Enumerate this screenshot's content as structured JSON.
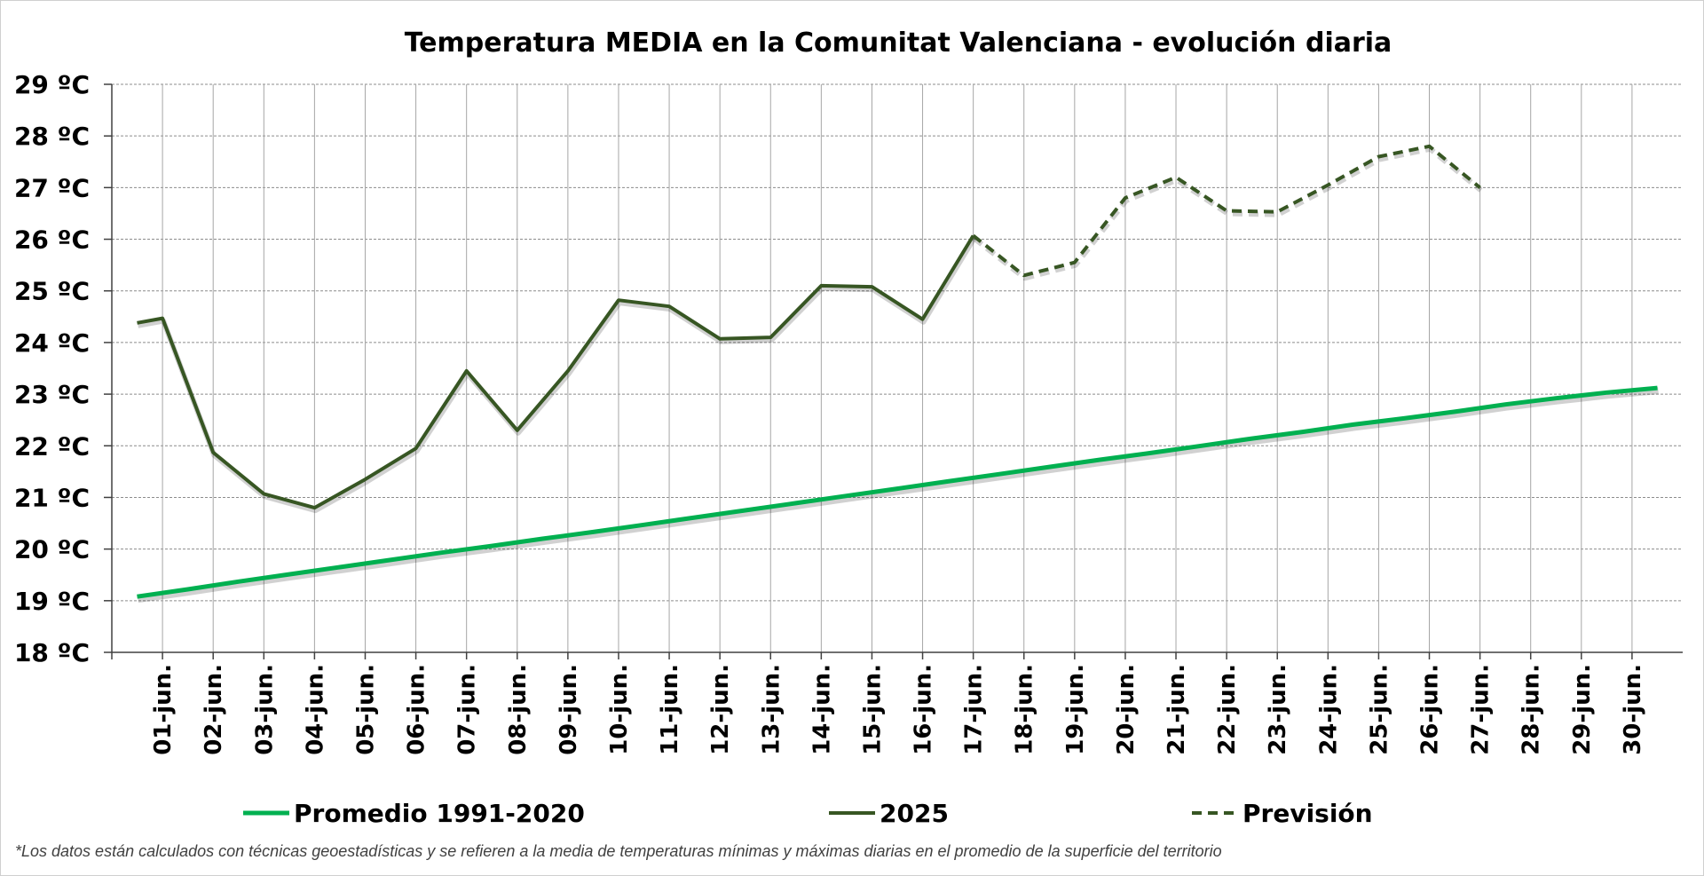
{
  "chart_data": {
    "type": "line",
    "title": "Temperatura MEDIA en la Comunitat Valenciana - evolución diaria",
    "ylim": [
      18,
      29
    ],
    "y_ticks": [
      "18 ºC",
      "19 ºC",
      "20 ºC",
      "21 ºC",
      "22 ºC",
      "23 ºC",
      "24 ºC",
      "25 ºC",
      "26 ºC",
      "27 ºC",
      "28 ºC",
      "29 ºC"
    ],
    "categories": [
      "01-jun.",
      "02-jun.",
      "03-jun.",
      "04-jun.",
      "05-jun.",
      "06-jun.",
      "07-jun.",
      "08-jun.",
      "09-jun.",
      "10-jun.",
      "11-jun.",
      "12-jun.",
      "13-jun.",
      "14-jun.",
      "15-jun.",
      "16-jun.",
      "17-jun.",
      "18-jun.",
      "19-jun.",
      "20-jun.",
      "21-jun.",
      "22-jun.",
      "23-jun.",
      "24-jun.",
      "25-jun.",
      "26-jun.",
      "27-jun.",
      "28-jun.",
      "29-jun.",
      "30-jun."
    ],
    "grid": true,
    "legend_position": "bottom",
    "series": [
      {
        "name": "Promedio 1991-2020",
        "color": "#00b050",
        "style": "solid",
        "x": [
          0.5,
          1.5,
          2.5,
          3.5,
          4.5,
          5.5,
          6.5,
          7.5,
          8.5,
          9.5,
          10.5,
          11.5,
          12.5,
          13.5,
          14.5,
          15.5,
          16.5,
          17.5,
          18.5,
          19.5,
          20.5,
          21.5,
          22.5,
          23.5,
          24.5,
          25.5,
          26.5,
          27.5,
          28.5,
          29.5,
          30.5
        ],
        "values": [
          19.08,
          19.22,
          19.37,
          19.51,
          19.65,
          19.79,
          19.93,
          20.06,
          20.2,
          20.33,
          20.47,
          20.61,
          20.75,
          20.89,
          21.03,
          21.17,
          21.31,
          21.45,
          21.59,
          21.73,
          21.86,
          22.0,
          22.14,
          22.27,
          22.41,
          22.53,
          22.66,
          22.8,
          22.92,
          23.03,
          23.12
        ]
      },
      {
        "name": "2025",
        "color": "#375623",
        "style": "solid",
        "x": [
          0.5,
          1.0,
          2.0,
          3.0,
          4.0,
          5.0,
          6.0,
          7.0,
          8.0,
          9.0,
          10.0,
          11.0,
          12.0,
          13.0,
          14.0,
          15.0,
          16.0,
          17.0
        ],
        "values": [
          24.38,
          24.47,
          21.87,
          21.07,
          20.8,
          21.35,
          21.95,
          23.45,
          22.3,
          23.45,
          24.82,
          24.7,
          24.07,
          24.1,
          25.1,
          25.08,
          24.45,
          26.07
        ]
      },
      {
        "name": "Previsión",
        "color": "#375623",
        "style": "dashed",
        "x": [
          17.0,
          18.0,
          19.0,
          20.0,
          21.0,
          22.0,
          23.0,
          24.0,
          25.0,
          26.0,
          27.0
        ],
        "values": [
          26.07,
          25.3,
          25.55,
          26.8,
          27.2,
          26.55,
          26.53,
          27.05,
          27.6,
          27.8,
          27.0
        ]
      }
    ]
  },
  "legend": {
    "items": [
      {
        "label": "Promedio 1991-2020",
        "color": "#00b050",
        "style": "solid"
      },
      {
        "label": "2025",
        "color": "#375623",
        "style": "solid"
      },
      {
        "label": "Previsión",
        "color": "#375623",
        "style": "dashed"
      }
    ]
  },
  "footnote": "*Los datos están calculados con técnicas geoestadísticas y se refieren a la media de temperaturas mínimas y máximas diarias en el promedio de la superficie del territorio"
}
